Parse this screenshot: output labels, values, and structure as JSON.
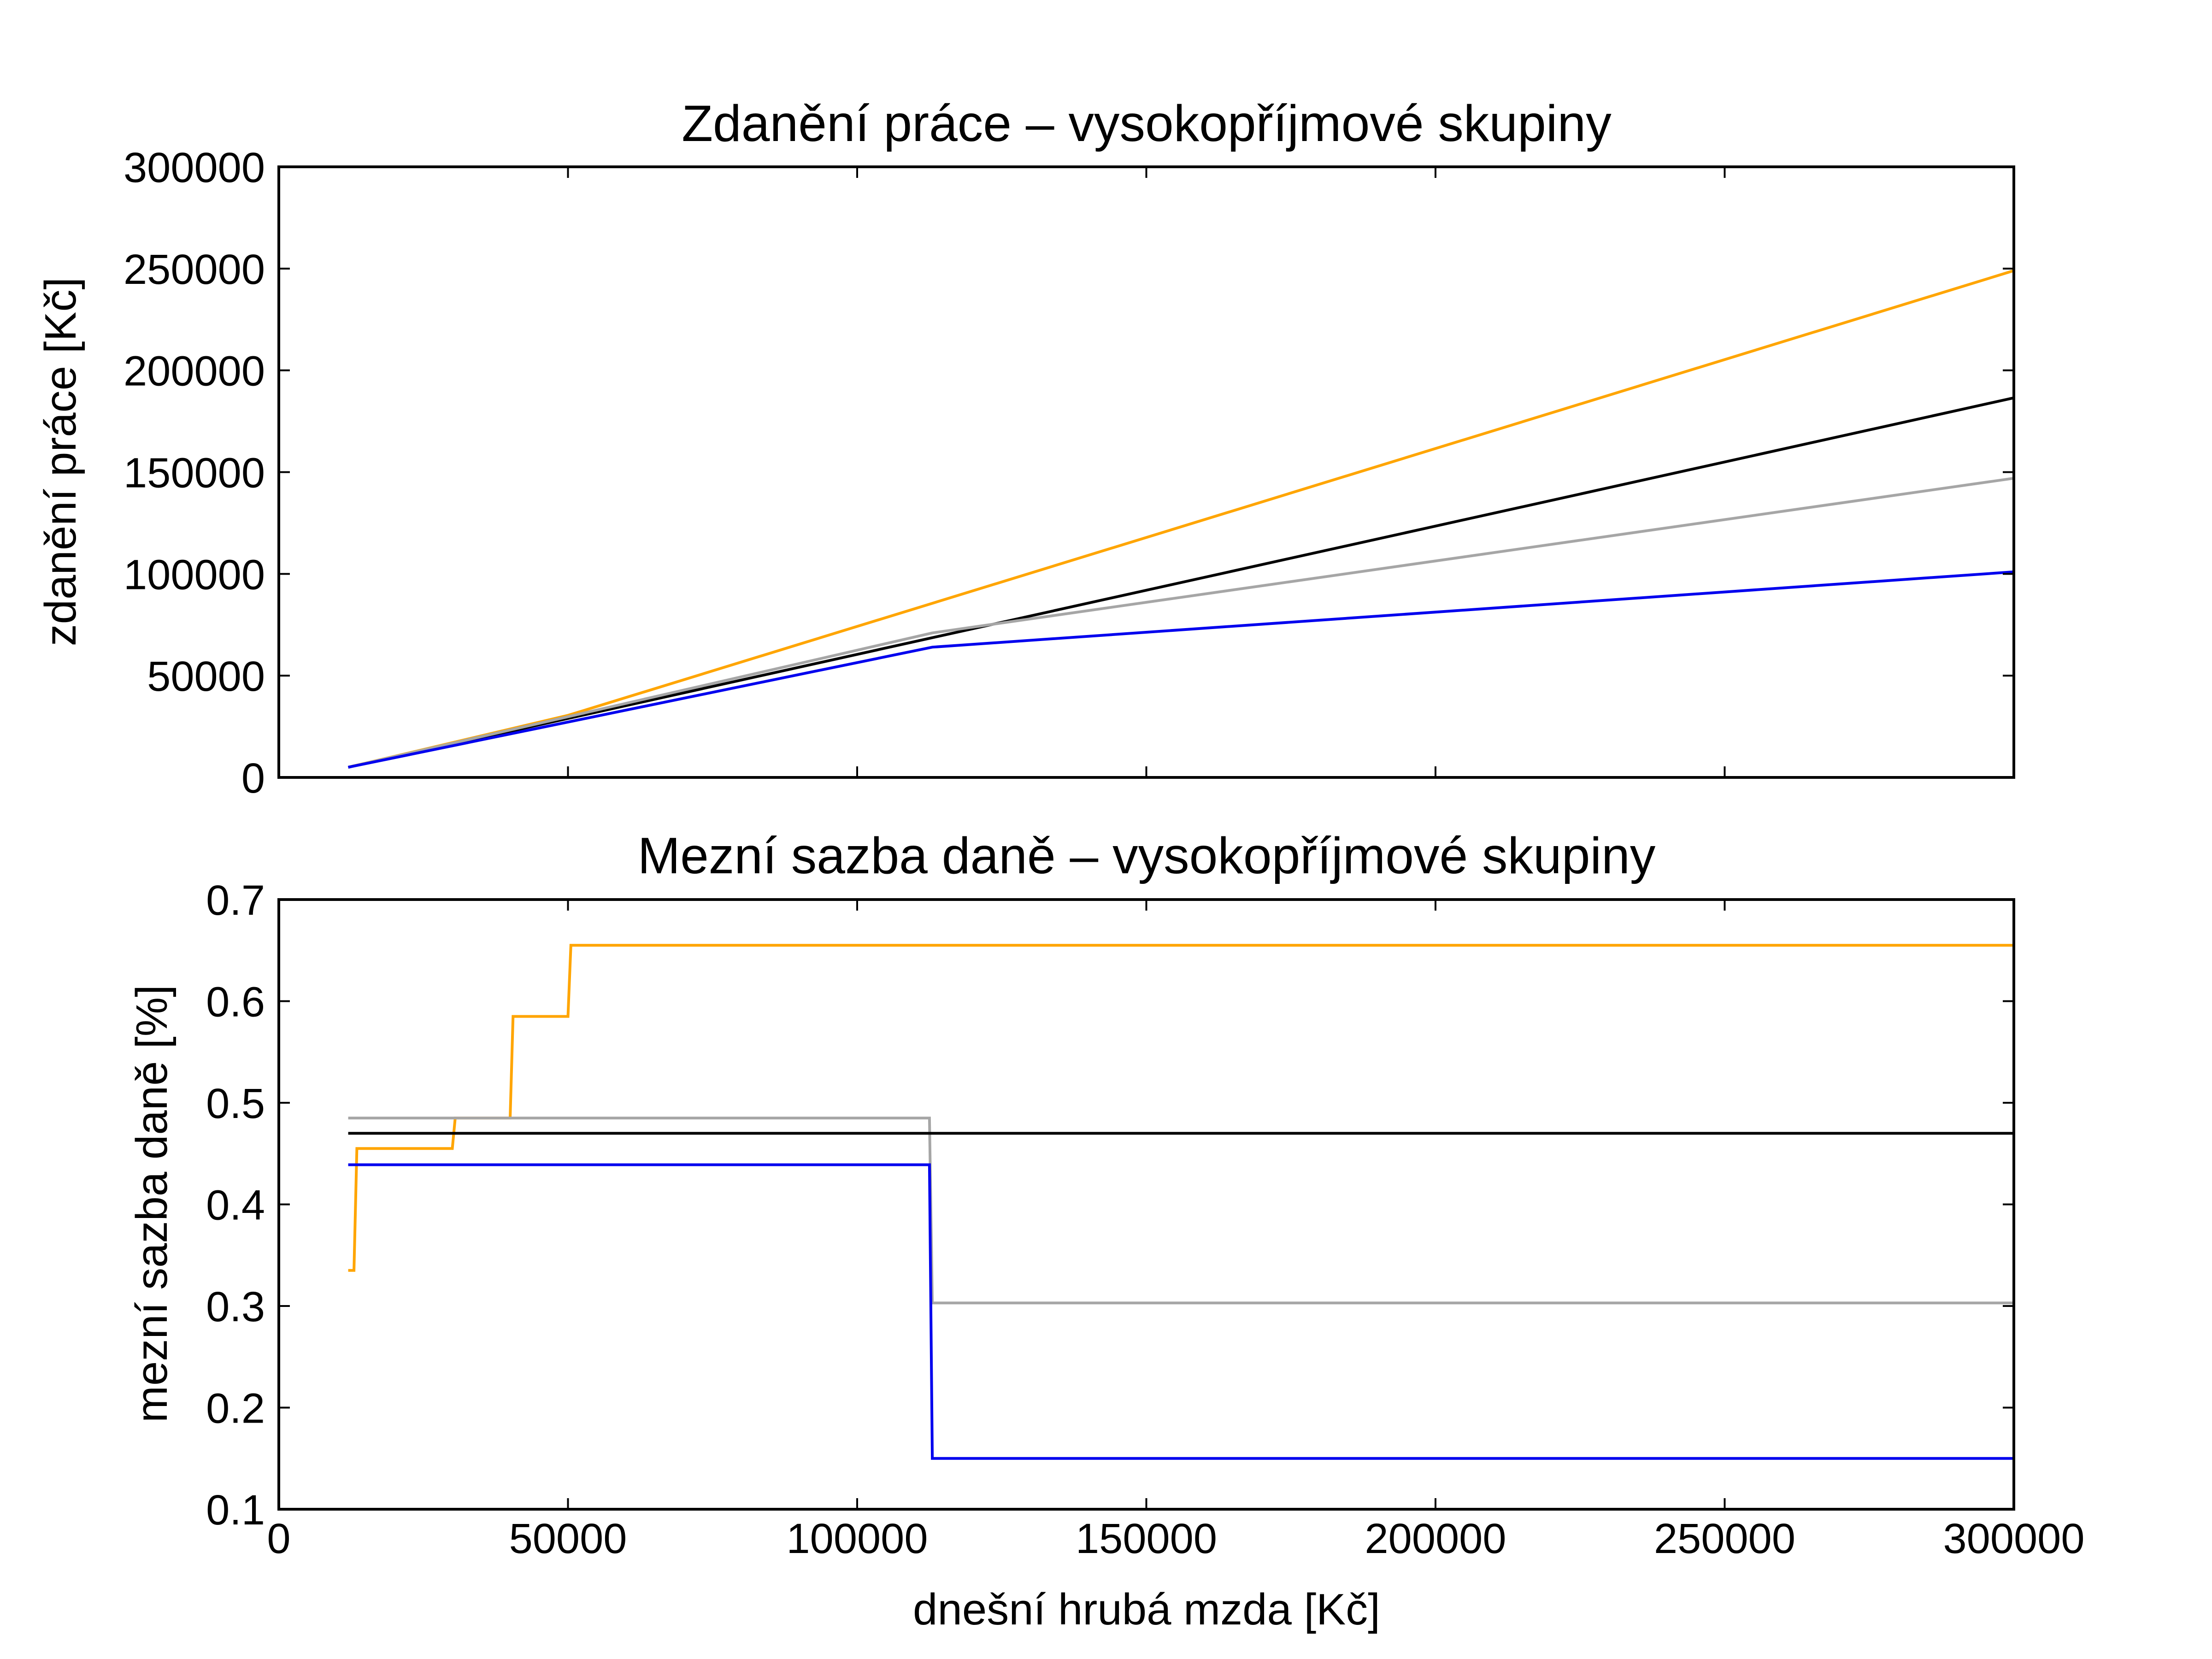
{
  "chart_data": [
    {
      "type": "line",
      "title": "Zdanění práce – vysokopříjmové skupiny",
      "xlabel": "",
      "ylabel": "zdanění práce [Kč]",
      "xlim": [
        0,
        300000
      ],
      "ylim": [
        0,
        300000
      ],
      "xticks": [
        0,
        50000,
        100000,
        150000,
        200000,
        250000,
        300000
      ],
      "yticks": [
        0,
        50000,
        100000,
        150000,
        200000,
        250000,
        300000
      ],
      "ytick_labels": [
        "0",
        "50000",
        "100000",
        "150000",
        "200000",
        "250000",
        "300000"
      ],
      "grid": false,
      "series": [
        {
          "color": "#ffa500",
          "x": [
            12000,
            50000,
            300000
          ],
          "y": [
            5000,
            30500,
            249000
          ]
        },
        {
          "color": "#000000",
          "x": [
            12000,
            300000
          ],
          "y": [
            5000,
            186500
          ]
        },
        {
          "color": "#a6a6a6",
          "x": [
            12000,
            113000,
            300000
          ],
          "y": [
            5000,
            71000,
            147000
          ]
        },
        {
          "color": "#0000ee",
          "x": [
            12000,
            113000,
            300000
          ],
          "y": [
            5000,
            64000,
            101000
          ]
        }
      ]
    },
    {
      "type": "line",
      "title": "Mezní sazba daně  – vysokopříjmové skupiny",
      "xlabel": "dnešní hrubá mzda [Kč]",
      "ylabel": "mezní sazba daně [%]",
      "xlim": [
        0,
        300000
      ],
      "ylim": [
        0.1,
        0.7
      ],
      "xticks": [
        0,
        50000,
        100000,
        150000,
        200000,
        250000,
        300000
      ],
      "xtick_labels": [
        "0",
        "50000",
        "100000",
        "150000",
        "200000",
        "250000",
        "300000"
      ],
      "yticks": [
        0.1,
        0.2,
        0.3,
        0.4,
        0.5,
        0.6,
        0.7
      ],
      "ytick_labels": [
        "0.1",
        "0.2",
        "0.3",
        "0.4",
        "0.5",
        "0.6",
        "0.7"
      ],
      "grid": false,
      "series": [
        {
          "color": "#ffa500",
          "x": [
            12000,
            13000,
            13500,
            30000,
            30500,
            40000,
            40500,
            50000,
            50500,
            300000
          ],
          "y": [
            0.335,
            0.335,
            0.455,
            0.455,
            0.485,
            0.485,
            0.585,
            0.585,
            0.655,
            0.655
          ]
        },
        {
          "color": "#a6a6a6",
          "x": [
            12000,
            112500,
            113000,
            300000
          ],
          "y": [
            0.485,
            0.485,
            0.303,
            0.303
          ]
        },
        {
          "color": "#000000",
          "x": [
            12000,
            300000
          ],
          "y": [
            0.47,
            0.47
          ]
        },
        {
          "color": "#0000ee",
          "x": [
            12000,
            112500,
            113000,
            300000
          ],
          "y": [
            0.439,
            0.439,
            0.15,
            0.15
          ]
        }
      ]
    }
  ]
}
